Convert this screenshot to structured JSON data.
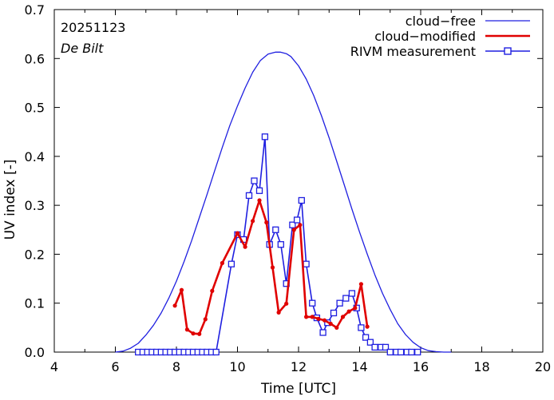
{
  "chart_data": {
    "type": "line",
    "annotations": {
      "date": "20251123",
      "location": "De Bilt"
    },
    "xlabel": "Time  [UTC]",
    "ylabel": "UV index  [-]",
    "xlim": [
      4,
      20
    ],
    "ylim": [
      0,
      0.7
    ],
    "x_ticks": [
      "4",
      "6",
      "8",
      "10",
      "12",
      "14",
      "16",
      "18",
      "20"
    ],
    "y_ticks": [
      "0.0",
      "0.1",
      "0.2",
      "0.3",
      "0.4",
      "0.5",
      "0.6",
      "0.7"
    ],
    "grid": false,
    "legend_position": "top-right",
    "series": [
      {
        "name": "cloud−free",
        "color": "#1f1fe0",
        "style": "thin-line",
        "x": [
          6.0,
          6.25,
          6.5,
          6.75,
          7.0,
          7.25,
          7.5,
          7.75,
          8.0,
          8.25,
          8.5,
          8.75,
          9.0,
          9.25,
          9.5,
          9.75,
          10.0,
          10.25,
          10.5,
          10.75,
          11.0,
          11.25,
          11.4,
          11.6,
          11.75,
          12.0,
          12.25,
          12.5,
          12.75,
          13.0,
          13.25,
          13.5,
          13.75,
          14.0,
          14.25,
          14.5,
          14.75,
          15.0,
          15.25,
          15.5,
          15.75,
          16.0,
          16.25,
          16.5,
          16.75,
          17.0
        ],
        "values": [
          0.0,
          0.002,
          0.008,
          0.018,
          0.035,
          0.055,
          0.08,
          0.11,
          0.145,
          0.185,
          0.228,
          0.275,
          0.322,
          0.37,
          0.418,
          0.463,
          0.503,
          0.54,
          0.572,
          0.596,
          0.609,
          0.613,
          0.613,
          0.61,
          0.604,
          0.585,
          0.558,
          0.524,
          0.483,
          0.438,
          0.39,
          0.341,
          0.292,
          0.245,
          0.2,
          0.158,
          0.12,
          0.087,
          0.058,
          0.036,
          0.02,
          0.009,
          0.003,
          0.001,
          0.0,
          0.0
        ]
      },
      {
        "name": "cloud−modified",
        "color": "#e00000",
        "style": "thick-line-dots",
        "x": [
          7.95,
          8.17,
          8.35,
          8.55,
          8.75,
          8.95,
          9.17,
          9.5,
          10.0,
          10.25,
          10.5,
          10.72,
          10.95,
          11.15,
          11.35,
          11.6,
          11.85,
          12.05,
          12.25,
          12.45,
          12.65,
          12.85,
          13.05,
          13.25,
          13.45,
          13.65,
          13.85,
          14.05,
          14.25,
          14.45
        ],
        "values": [
          0.095,
          0.127,
          0.046,
          0.038,
          0.037,
          0.067,
          0.125,
          0.182,
          0.243,
          0.215,
          0.268,
          0.31,
          0.265,
          0.173,
          0.081,
          0.099,
          0.25,
          0.26,
          0.072,
          0.072,
          0.068,
          0.065,
          0.058,
          0.05,
          0.072,
          0.083,
          0.09,
          0.139,
          0.052,
          null
        ]
      },
      {
        "name": "RIVM measurement",
        "color": "#1f1fe0",
        "style": "line-square-markers",
        "x": [
          6.75,
          6.9,
          7.05,
          7.2,
          7.35,
          7.5,
          7.65,
          7.8,
          7.95,
          8.1,
          8.25,
          8.4,
          8.55,
          8.7,
          8.85,
          9.0,
          9.15,
          9.3,
          9.8,
          10.0,
          10.2,
          10.38,
          10.55,
          10.72,
          10.9,
          11.05,
          11.25,
          11.42,
          11.6,
          11.8,
          11.95,
          12.1,
          12.25,
          12.45,
          12.6,
          12.8,
          12.95,
          13.15,
          13.35,
          13.55,
          13.75,
          13.9,
          14.05,
          14.2,
          14.35,
          14.5,
          14.7,
          14.85,
          15.0,
          15.2,
          15.35,
          15.55,
          15.7,
          15.9
        ],
        "values": [
          0.0,
          0.0,
          0.0,
          0.0,
          0.0,
          0.0,
          0.0,
          0.0,
          0.0,
          0.0,
          0.0,
          0.0,
          0.0,
          0.0,
          0.0,
          0.0,
          0.0,
          0.0,
          0.18,
          0.24,
          0.23,
          0.32,
          0.35,
          0.33,
          0.44,
          0.22,
          0.25,
          0.22,
          0.14,
          0.26,
          0.27,
          0.31,
          0.18,
          0.1,
          0.07,
          0.04,
          0.06,
          0.08,
          0.1,
          0.11,
          0.12,
          0.09,
          0.05,
          0.03,
          0.02,
          0.01,
          0.01,
          0.01,
          0.0,
          0.0,
          0.0,
          0.0,
          0.0,
          0.0
        ]
      }
    ]
  }
}
